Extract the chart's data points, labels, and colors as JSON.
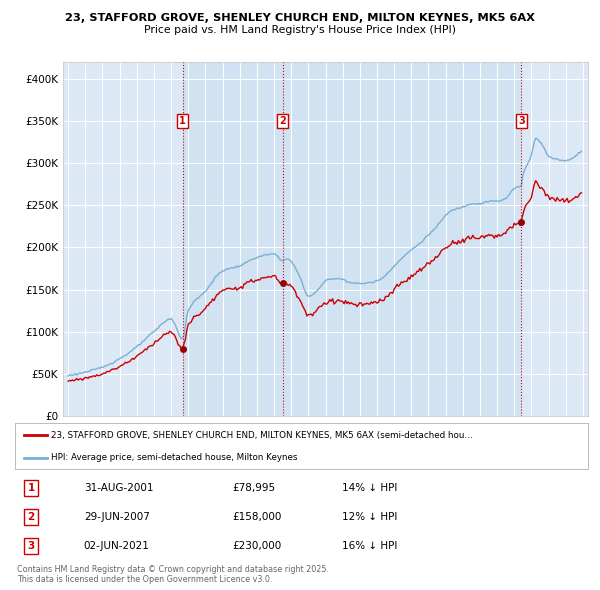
{
  "title1": "23, STAFFORD GROVE, SHENLEY CHURCH END, MILTON KEYNES, MK5 6AX",
  "title2": "Price paid vs. HM Land Registry's House Price Index (HPI)",
  "background_color": "#ffffff",
  "plot_bg_color": "#dce8f5",
  "shade_color": "#ccddf0",
  "grid_color": "#ffffff",
  "sales": [
    {
      "label": "1",
      "date_num": 2001.667,
      "price": 78995,
      "x_label": "31-AUG-2001",
      "price_str": "£78,995",
      "pct": "14% ↓ HPI"
    },
    {
      "label": "2",
      "date_num": 2007.5,
      "price": 158000,
      "x_label": "29-JUN-2007",
      "price_str": "£158,000",
      "pct": "12% ↓ HPI"
    },
    {
      "label": "3",
      "date_num": 2021.417,
      "price": 230000,
      "x_label": "02-JUN-2021",
      "price_str": "£230,000",
      "pct": "16% ↓ HPI"
    }
  ],
  "legend_property": "23, STAFFORD GROVE, SHENLEY CHURCH END, MILTON KEYNES, MK5 6AX (semi-detached hou…",
  "legend_hpi": "HPI: Average price, semi-detached house, Milton Keynes",
  "footer1": "Contains HM Land Registry data © Crown copyright and database right 2025.",
  "footer2": "This data is licensed under the Open Government Licence v3.0.",
  "property_color": "#cc0000",
  "hpi_color": "#7ab0d4",
  "sale_dot_color": "#990000",
  "xlim_min": 1994.7,
  "xlim_max": 2025.3,
  "ylim_min": 0,
  "ylim_max": 420000,
  "yticks": [
    0,
    50000,
    100000,
    150000,
    200000,
    250000,
    300000,
    350000,
    400000
  ],
  "ytick_labels": [
    "£0",
    "£50K",
    "£100K",
    "£150K",
    "£200K",
    "£250K",
    "£300K",
    "£350K",
    "£400K"
  ],
  "xticks": [
    1995,
    1996,
    1997,
    1998,
    1999,
    2000,
    2001,
    2002,
    2003,
    2004,
    2005,
    2006,
    2007,
    2008,
    2009,
    2010,
    2011,
    2012,
    2013,
    2014,
    2015,
    2016,
    2017,
    2018,
    2019,
    2020,
    2021,
    2022,
    2023,
    2024,
    2025
  ]
}
